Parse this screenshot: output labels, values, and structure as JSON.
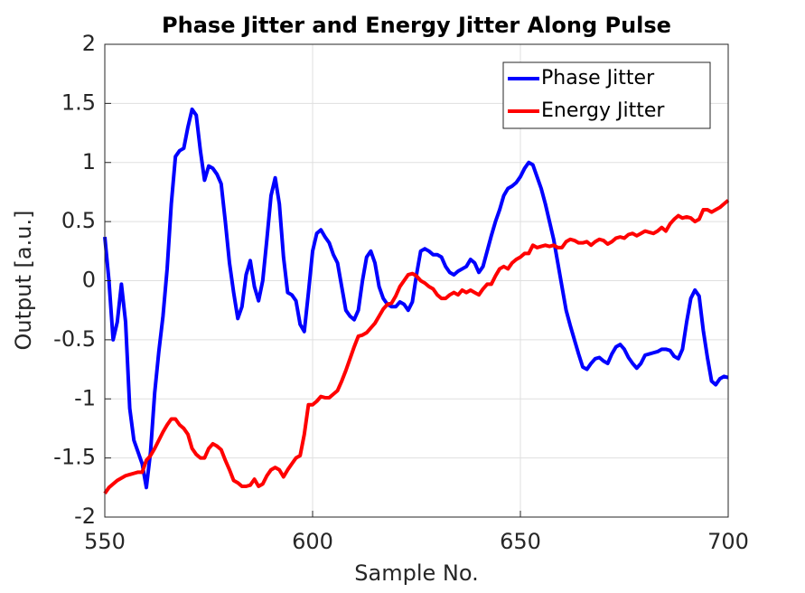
{
  "chart_data": {
    "type": "line",
    "title": "Phase Jitter and Energy Jitter Along Pulse",
    "x_label": "Sample No.",
    "y_label": "Output [a.u.]",
    "x": [
      550,
      551,
      552,
      553,
      554,
      555,
      556,
      557,
      558,
      559,
      560,
      561,
      562,
      563,
      564,
      565,
      566,
      567,
      568,
      569,
      570,
      571,
      572,
      573,
      574,
      575,
      576,
      577,
      578,
      579,
      580,
      581,
      582,
      583,
      584,
      585,
      586,
      587,
      588,
      589,
      590,
      591,
      592,
      593,
      594,
      595,
      596,
      597,
      598,
      599,
      600,
      601,
      602,
      603,
      604,
      605,
      606,
      607,
      608,
      609,
      610,
      611,
      612,
      613,
      614,
      615,
      616,
      617,
      618,
      619,
      620,
      621,
      622,
      623,
      624,
      625,
      626,
      627,
      628,
      629,
      630,
      631,
      632,
      633,
      634,
      635,
      636,
      637,
      638,
      639,
      640,
      641,
      642,
      643,
      644,
      645,
      646,
      647,
      648,
      649,
      650,
      651,
      652,
      653,
      654,
      655,
      656,
      657,
      658,
      659,
      660,
      661,
      662,
      663,
      664,
      665,
      666,
      667,
      668,
      669,
      670,
      671,
      672,
      673,
      674,
      675,
      676,
      677,
      678,
      679,
      680,
      681,
      682,
      683,
      684,
      685,
      686,
      687,
      688,
      689,
      690,
      691,
      692,
      693,
      694,
      695,
      696,
      697,
      698,
      699,
      700
    ],
    "series": [
      {
        "name": "Phase Jitter",
        "color": "#0000ff",
        "values": [
          0.37,
          0.0,
          -0.5,
          -0.35,
          -0.03,
          -0.35,
          -1.08,
          -1.35,
          -1.45,
          -1.55,
          -1.75,
          -1.45,
          -0.95,
          -0.6,
          -0.3,
          0.1,
          0.65,
          1.05,
          1.1,
          1.12,
          1.3,
          1.45,
          1.4,
          1.1,
          0.85,
          0.97,
          0.95,
          0.9,
          0.82,
          0.5,
          0.15,
          -0.1,
          -0.32,
          -0.22,
          0.05,
          0.17,
          -0.05,
          -0.17,
          0.0,
          0.35,
          0.72,
          0.87,
          0.65,
          0.2,
          -0.1,
          -0.12,
          -0.17,
          -0.37,
          -0.43,
          -0.1,
          0.25,
          0.4,
          0.43,
          0.37,
          0.32,
          0.22,
          0.15,
          -0.05,
          -0.25,
          -0.3,
          -0.33,
          -0.25,
          0.0,
          0.2,
          0.25,
          0.15,
          -0.05,
          -0.15,
          -0.2,
          -0.22,
          -0.22,
          -0.18,
          -0.2,
          -0.25,
          -0.18,
          0.05,
          0.25,
          0.27,
          0.25,
          0.22,
          0.22,
          0.2,
          0.12,
          0.07,
          0.05,
          0.08,
          0.1,
          0.12,
          0.18,
          0.15,
          0.07,
          0.12,
          0.25,
          0.38,
          0.5,
          0.6,
          0.72,
          0.78,
          0.8,
          0.83,
          0.88,
          0.95,
          1.0,
          0.98,
          0.88,
          0.78,
          0.65,
          0.5,
          0.35,
          0.15,
          -0.05,
          -0.25,
          -0.38,
          -0.5,
          -0.62,
          -0.73,
          -0.75,
          -0.7,
          -0.66,
          -0.65,
          -0.68,
          -0.7,
          -0.62,
          -0.56,
          -0.54,
          -0.58,
          -0.65,
          -0.7,
          -0.74,
          -0.7,
          -0.63,
          -0.62,
          -0.61,
          -0.6,
          -0.58,
          -0.58,
          -0.59,
          -0.64,
          -0.66,
          -0.58,
          -0.35,
          -0.15,
          -0.08,
          -0.13,
          -0.42,
          -0.65,
          -0.85,
          -0.88,
          -0.83,
          -0.81,
          -0.82
        ]
      },
      {
        "name": "Energy Jitter",
        "color": "#ff0000",
        "values": [
          -1.8,
          -1.75,
          -1.72,
          -1.69,
          -1.67,
          -1.65,
          -1.64,
          -1.63,
          -1.62,
          -1.62,
          -1.52,
          -1.48,
          -1.42,
          -1.35,
          -1.28,
          -1.22,
          -1.17,
          -1.17,
          -1.22,
          -1.25,
          -1.3,
          -1.42,
          -1.47,
          -1.5,
          -1.5,
          -1.42,
          -1.38,
          -1.4,
          -1.43,
          -1.52,
          -1.6,
          -1.69,
          -1.71,
          -1.74,
          -1.74,
          -1.73,
          -1.68,
          -1.74,
          -1.72,
          -1.65,
          -1.6,
          -1.58,
          -1.6,
          -1.66,
          -1.6,
          -1.55,
          -1.5,
          -1.48,
          -1.3,
          -1.05,
          -1.05,
          -1.02,
          -0.98,
          -0.99,
          -0.99,
          -0.96,
          -0.93,
          -0.85,
          -0.76,
          -0.66,
          -0.56,
          -0.47,
          -0.46,
          -0.44,
          -0.4,
          -0.36,
          -0.3,
          -0.24,
          -0.2,
          -0.19,
          -0.13,
          -0.05,
          0.0,
          0.05,
          0.06,
          0.04,
          0.0,
          -0.02,
          -0.05,
          -0.07,
          -0.12,
          -0.15,
          -0.15,
          -0.12,
          -0.1,
          -0.12,
          -0.08,
          -0.1,
          -0.08,
          -0.1,
          -0.12,
          -0.07,
          -0.03,
          -0.03,
          0.04,
          0.1,
          0.12,
          0.1,
          0.15,
          0.18,
          0.2,
          0.23,
          0.23,
          0.3,
          0.28,
          0.29,
          0.3,
          0.29,
          0.3,
          0.28,
          0.28,
          0.33,
          0.35,
          0.34,
          0.32,
          0.32,
          0.33,
          0.3,
          0.33,
          0.35,
          0.34,
          0.31,
          0.33,
          0.36,
          0.37,
          0.36,
          0.39,
          0.4,
          0.38,
          0.4,
          0.42,
          0.41,
          0.4,
          0.42,
          0.45,
          0.42,
          0.48,
          0.52,
          0.55,
          0.53,
          0.54,
          0.53,
          0.5,
          0.52,
          0.6,
          0.6,
          0.58,
          0.6,
          0.62,
          0.65,
          0.68
        ]
      }
    ],
    "xlim": [
      550,
      700
    ],
    "ylim": [
      -2,
      2
    ],
    "xticks": [
      550,
      600,
      650,
      700
    ],
    "yticks": [
      -2,
      -1.5,
      -1,
      -0.5,
      0,
      0.5,
      1,
      1.5,
      2
    ],
    "grid": true,
    "legend_position": "upper-right"
  }
}
